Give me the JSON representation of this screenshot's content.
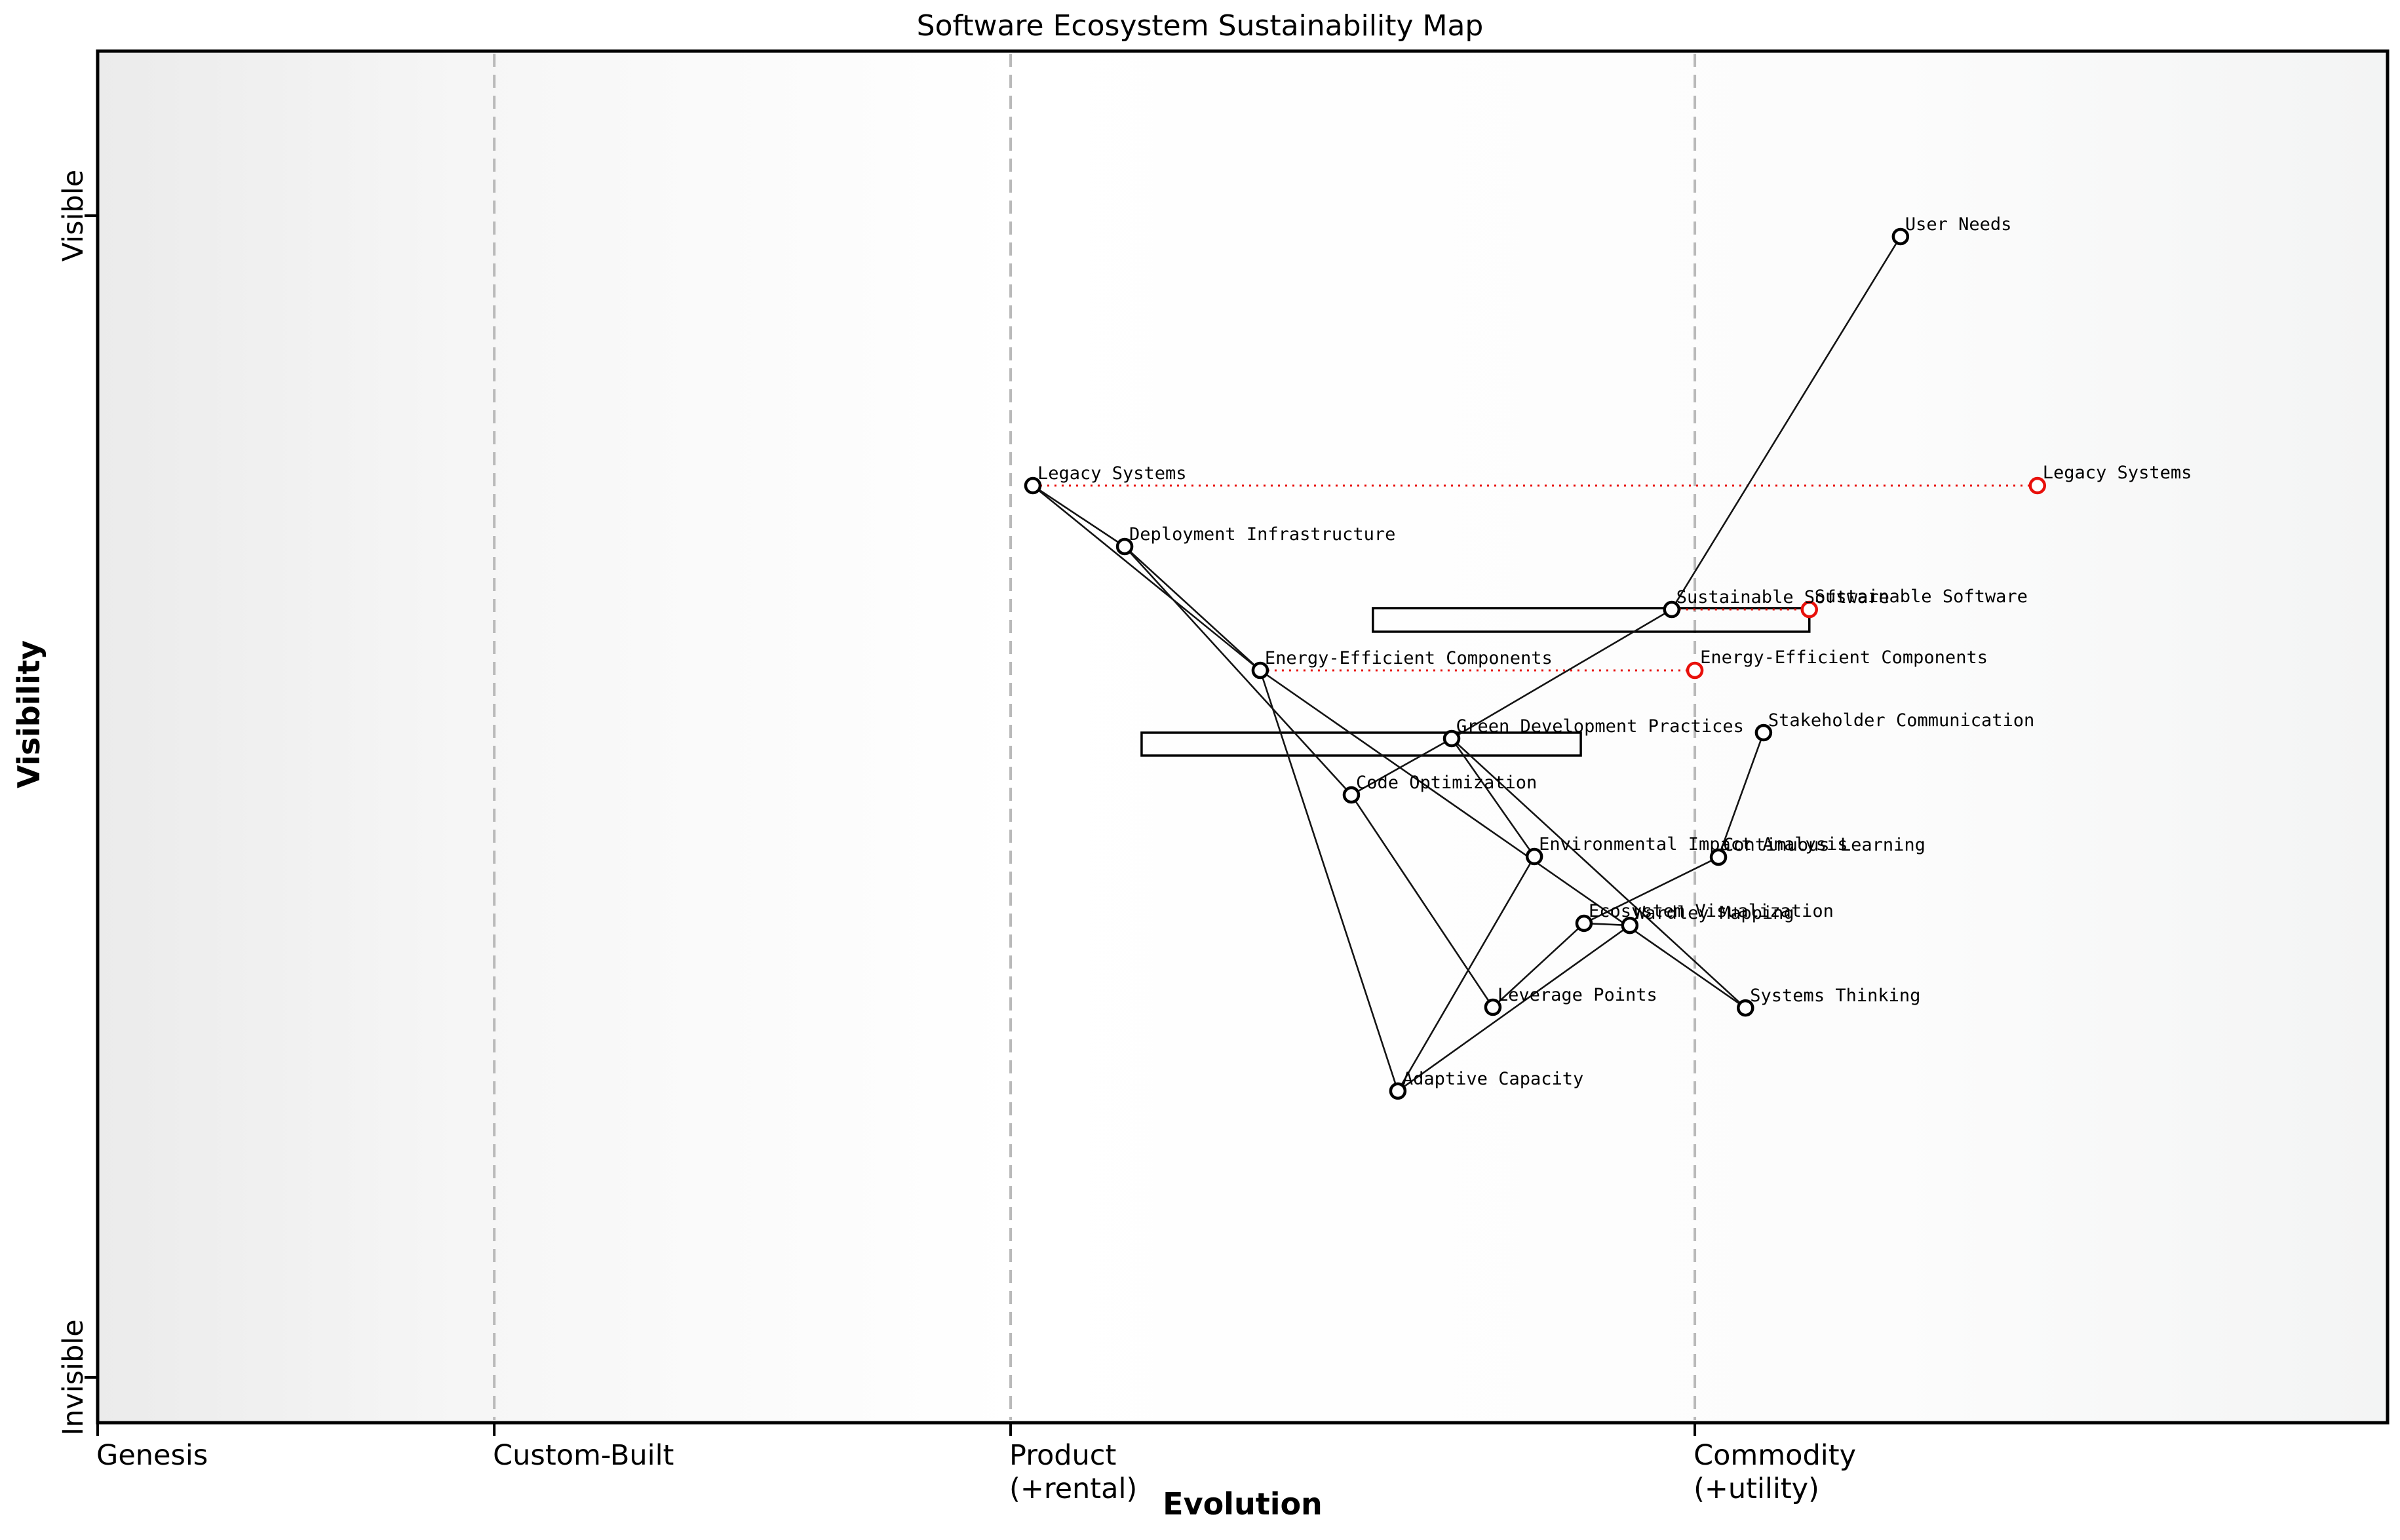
{
  "title": "Software Ecosystem Sustainability Map",
  "axes": {
    "x_label": "Evolution",
    "y_label": "Visibility",
    "x_ticks": [
      {
        "label": "Genesis",
        "pos": 0.0
      },
      {
        "label": "Custom-Built",
        "pos": 0.1732
      },
      {
        "label": "Product\n(+rental)",
        "pos": 0.3987
      },
      {
        "label": "Commodity\n(+utility)",
        "pos": 0.6975
      }
    ],
    "y_ticks": [
      {
        "label": "Visible",
        "pos": 0.12
      },
      {
        "label": "Invisible",
        "pos": 0.967
      }
    ],
    "gridlines_at": [
      0.1732,
      0.3987,
      0.6975
    ]
  },
  "chart_data": {
    "type": "wardley_map",
    "title": "Software Ecosystem Sustainability Map",
    "x_axis": {
      "label": "Evolution",
      "stages": [
        "Genesis",
        "Custom-Built",
        "Product\n(+rental)",
        "Commodity\n(+utility)"
      ],
      "range": [
        0,
        1
      ]
    },
    "y_axis": {
      "label": "Visibility",
      "top": "Visible",
      "bottom": "Invisible",
      "range": [
        0,
        1
      ]
    },
    "nodes": [
      {
        "id": "user-needs",
        "label": "User Needs",
        "x": 0.7873,
        "y": 0.1352
      },
      {
        "id": "legacy-systems",
        "label": "Legacy Systems",
        "x": 0.4084,
        "y": 0.3168,
        "moved_to_x": 0.8471
      },
      {
        "id": "deployment-infrastructure",
        "label": "Deployment Infrastructure",
        "x": 0.4485,
        "y": 0.3612
      },
      {
        "id": "sustainable-software",
        "label": "Sustainable Software",
        "x": 0.6874,
        "y": 0.4071,
        "moved_to_x": 0.7475
      },
      {
        "id": "energy-efficient-components",
        "label": "Energy-Efficient Components",
        "x": 0.5077,
        "y": 0.4515,
        "moved_to_x": 0.6975
      },
      {
        "id": "green-development-practices",
        "label": "Green Development Practices",
        "x": 0.5913,
        "y": 0.5012
      },
      {
        "id": "stakeholder-communication",
        "label": "Stakeholder Communication",
        "x": 0.7275,
        "y": 0.4969
      },
      {
        "id": "code-optimization",
        "label": "Code Optimization",
        "x": 0.5475,
        "y": 0.5423
      },
      {
        "id": "environmental-impact-analysis",
        "label": "Environmental Impact Analysis",
        "x": 0.6274,
        "y": 0.5872
      },
      {
        "id": "continuous-learning",
        "label": "Continuous Learning",
        "x": 0.7078,
        "y": 0.5877
      },
      {
        "id": "ecosystem-visualization",
        "label": "Ecosystem Visualization",
        "x": 0.6491,
        "y": 0.6359
      },
      {
        "id": "wardley-mapping",
        "label": "Wardley Mapping",
        "x": 0.6691,
        "y": 0.6374
      },
      {
        "id": "leverage-points",
        "label": "Leverage Points",
        "x": 0.6093,
        "y": 0.6971
      },
      {
        "id": "systems-thinking",
        "label": "Systems Thinking",
        "x": 0.7196,
        "y": 0.6976
      },
      {
        "id": "adaptive-capacity",
        "label": "Adaptive Capacity",
        "x": 0.5678,
        "y": 0.7582
      }
    ],
    "edges": [
      [
        "user-needs",
        "sustainable-software"
      ],
      [
        "sustainable-software",
        "green-development-practices"
      ],
      [
        "legacy-systems",
        "deployment-infrastructure"
      ],
      [
        "legacy-systems",
        "energy-efficient-components"
      ],
      [
        "deployment-infrastructure",
        "energy-efficient-components"
      ],
      [
        "deployment-infrastructure",
        "code-optimization"
      ],
      [
        "green-development-practices",
        "code-optimization"
      ],
      [
        "green-development-practices",
        "environmental-impact-analysis"
      ],
      [
        "green-development-practices",
        "systems-thinking"
      ],
      [
        "energy-efficient-components",
        "systems-thinking"
      ],
      [
        "energy-efficient-components",
        "adaptive-capacity"
      ],
      [
        "code-optimization",
        "leverage-points"
      ],
      [
        "environmental-impact-analysis",
        "adaptive-capacity"
      ],
      [
        "leverage-points",
        "ecosystem-visualization"
      ],
      [
        "adaptive-capacity",
        "wardley-mapping"
      ],
      [
        "ecosystem-visualization",
        "wardley-mapping"
      ],
      [
        "stakeholder-communication",
        "continuous-learning"
      ],
      [
        "continuous-learning",
        "ecosystem-visualization"
      ]
    ],
    "pipelines": [
      {
        "x1": 0.5569,
        "x2": 0.7475,
        "y": 0.4061,
        "h": 0.0172
      },
      {
        "x1": 0.4559,
        "x2": 0.6477,
        "y": 0.4969,
        "h": 0.0167
      }
    ],
    "colors": {
      "node_stroke": "#000000",
      "node_fill": "#ffffff",
      "movement_red": "#e8100b",
      "edge": "#141414",
      "gridline": "#b9b9b9",
      "spine": "#000000",
      "bg_left": "#ebebeb",
      "bg_mid": "#ffffff",
      "bg_right": "#f3f4f4"
    }
  }
}
